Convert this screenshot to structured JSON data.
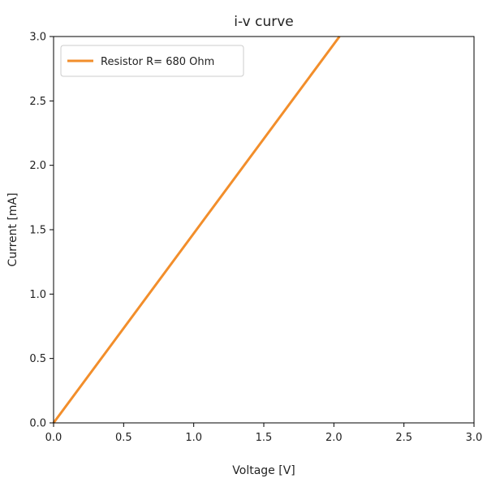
{
  "chart_data": {
    "type": "line",
    "title": "i-v curve",
    "xlabel": "Voltage [V]",
    "ylabel": "Current [mA]",
    "xlim": [
      0.0,
      3.0
    ],
    "ylim": [
      0.0,
      3.0
    ],
    "xticks": [
      "0.0",
      "0.5",
      "1.0",
      "1.5",
      "2.0",
      "2.5",
      "3.0"
    ],
    "yticks": [
      "0.0",
      "0.5",
      "1.0",
      "1.5",
      "2.0",
      "2.5",
      "3.0"
    ],
    "grid": false,
    "legend_position": "top-left",
    "series": [
      {
        "name": "Resistor R= 680 Ohm",
        "color": "#f28e2b",
        "x": [
          0.0,
          0.5,
          1.0,
          1.5,
          2.0,
          2.04
        ],
        "y": [
          0.0,
          0.735,
          1.471,
          2.206,
          2.941,
          3.0
        ]
      }
    ]
  }
}
